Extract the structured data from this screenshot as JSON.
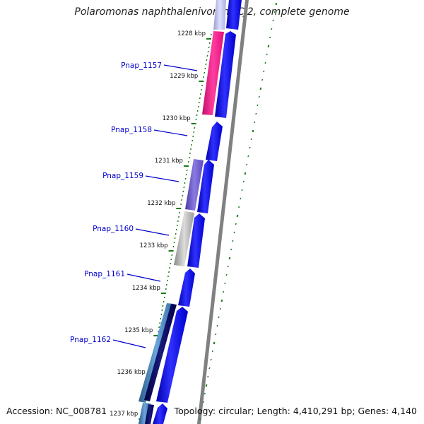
{
  "header": {
    "title": "Polaromonas naphthalenivorans CJ2, complete genome"
  },
  "footer": {
    "accession": "Accession: NC_008781",
    "topology": "Topology: circular; Length: 4,410,291 bp; Genes: 4,140"
  },
  "ticks": [
    "1228 kbp",
    "1229 kbp",
    "1230 kbp",
    "1231 kbp",
    "1232 kbp",
    "1233 kbp",
    "1234 kbp",
    "1235 kbp",
    "1236 kbp",
    "1237 kbp"
  ],
  "genes": [
    "Pnap_1157",
    "Pnap_1158",
    "Pnap_1159",
    "Pnap_1160",
    "Pnap_1161",
    "Pnap_1162"
  ],
  "colors": {
    "cds_arrow": "#0000ff",
    "gene_label": "#0000cc",
    "tick_mark": "#1a7a1a",
    "Pnap_1157": "#ff1493",
    "Pnap_1159": "#6a5acd",
    "Pnap_1160": "#a9a9a9",
    "Pnap_1162": "#4682b4",
    "backbone": "#808080"
  }
}
